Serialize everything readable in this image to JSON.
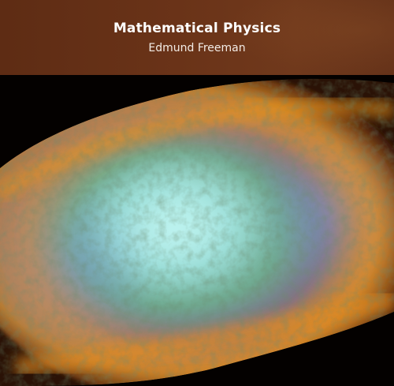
{
  "cover": {
    "title": "Mathematical Physics",
    "author": "Edmund Freeman"
  },
  "colors": {
    "title_band": "#6a3318",
    "title_text": "#ffffff",
    "nebula_core": "#8fd6cf",
    "nebula_rim": "#e08a22",
    "background": "#030100"
  },
  "artwork": {
    "subject": "nebula-image"
  }
}
